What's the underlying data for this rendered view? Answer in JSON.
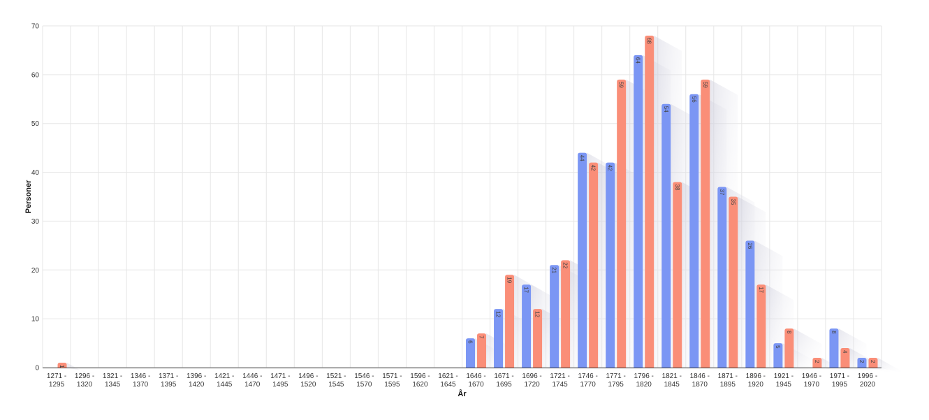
{
  "chart_data": {
    "type": "bar",
    "title": "",
    "xlabel": "År",
    "ylabel": "Personer",
    "ylim": [
      0,
      70
    ],
    "yticks": [
      0,
      10,
      20,
      30,
      40,
      50,
      60,
      70
    ],
    "grid": true,
    "legend": "none",
    "categories": [
      [
        "1271 -",
        "1295"
      ],
      [
        "1296 -",
        "1320"
      ],
      [
        "1321 -",
        "1345"
      ],
      [
        "1346 -",
        "1370"
      ],
      [
        "1371 -",
        "1395"
      ],
      [
        "1396 -",
        "1420"
      ],
      [
        "1421 -",
        "1445"
      ],
      [
        "1446 -",
        "1470"
      ],
      [
        "1471 -",
        "1495"
      ],
      [
        "1496 -",
        "1520"
      ],
      [
        "1521 -",
        "1545"
      ],
      [
        "1546 -",
        "1570"
      ],
      [
        "1571 -",
        "1595"
      ],
      [
        "1596 -",
        "1620"
      ],
      [
        "1621 -",
        "1645"
      ],
      [
        "1646 -",
        "1670"
      ],
      [
        "1671 -",
        "1695"
      ],
      [
        "1696 -",
        "1720"
      ],
      [
        "1721 -",
        "1745"
      ],
      [
        "1746 -",
        "1770"
      ],
      [
        "1771 -",
        "1795"
      ],
      [
        "1796 -",
        "1820"
      ],
      [
        "1821 -",
        "1845"
      ],
      [
        "1846 -",
        "1870"
      ],
      [
        "1871 -",
        "1895"
      ],
      [
        "1896 -",
        "1920"
      ],
      [
        "1921 -",
        "1945"
      ],
      [
        "1946 -",
        "1970"
      ],
      [
        "1971 -",
        "1995"
      ],
      [
        "1996 -",
        "2020"
      ]
    ],
    "series": [
      {
        "color": "#7b96f4",
        "values": [
          0,
          0,
          0,
          0,
          0,
          0,
          0,
          0,
          0,
          0,
          0,
          0,
          0,
          0,
          0,
          6,
          12,
          17,
          21,
          44,
          42,
          64,
          54,
          56,
          37,
          26,
          5,
          0,
          8,
          2
        ]
      },
      {
        "color": "#fa8e78",
        "values": [
          1,
          0,
          0,
          0,
          0,
          0,
          0,
          0,
          0,
          0,
          0,
          0,
          0,
          0,
          0,
          7,
          19,
          12,
          22,
          42,
          59,
          68,
          38,
          59,
          35,
          17,
          8,
          2,
          4,
          2
        ]
      }
    ]
  }
}
